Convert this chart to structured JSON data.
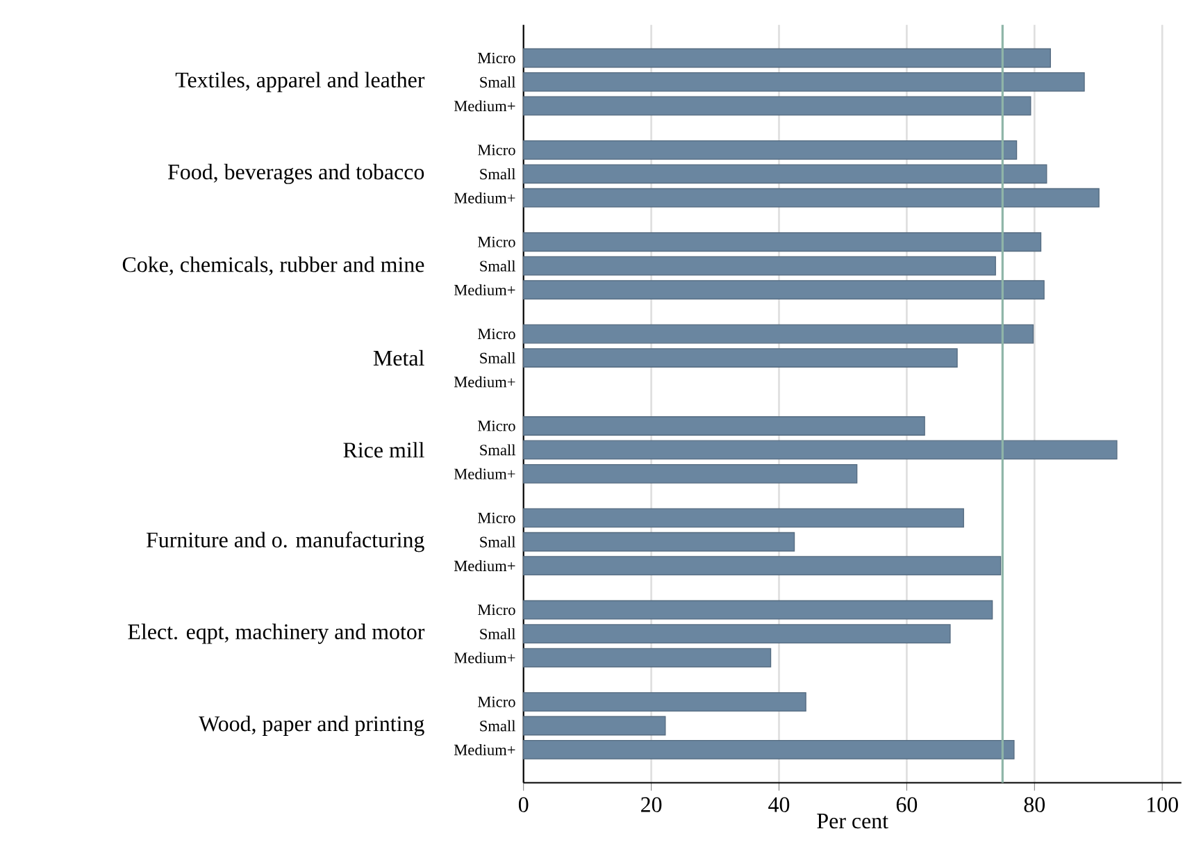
{
  "chart_data": {
    "type": "bar",
    "orientation": "horizontal",
    "xlabel": "Per cent",
    "categories": [
      "Textiles, apparel and leather",
      "Food, beverages and tobacco",
      "Coke, chemicals, rubber and mine",
      "Metal",
      "Rice mill",
      "Furniture and o. manufacturing",
      "Elect. eqpt, machinery and motor",
      "Wood, paper and printing"
    ],
    "series": [
      {
        "name": "Micro",
        "color": "#6a86a0",
        "values": [
          82.5,
          77.2,
          81.0,
          79.8,
          62.8,
          68.9,
          73.4,
          44.2
        ]
      },
      {
        "name": "Small",
        "color": "#6a86a0",
        "values": [
          87.8,
          81.9,
          73.9,
          67.9,
          92.9,
          42.4,
          66.8,
          22.2
        ]
      },
      {
        "name": "Medium+",
        "color": "#6a86a0",
        "values": [
          79.4,
          90.1,
          81.5,
          null,
          52.2,
          74.7,
          38.7,
          76.8
        ]
      }
    ],
    "xlim": [
      0,
      103
    ],
    "xticks": [
      0,
      20,
      40,
      60,
      80,
      100
    ],
    "grid": "x",
    "ref_lines": [
      {
        "axis": "x",
        "value": 75,
        "color": "#8fb5a8"
      }
    ]
  }
}
